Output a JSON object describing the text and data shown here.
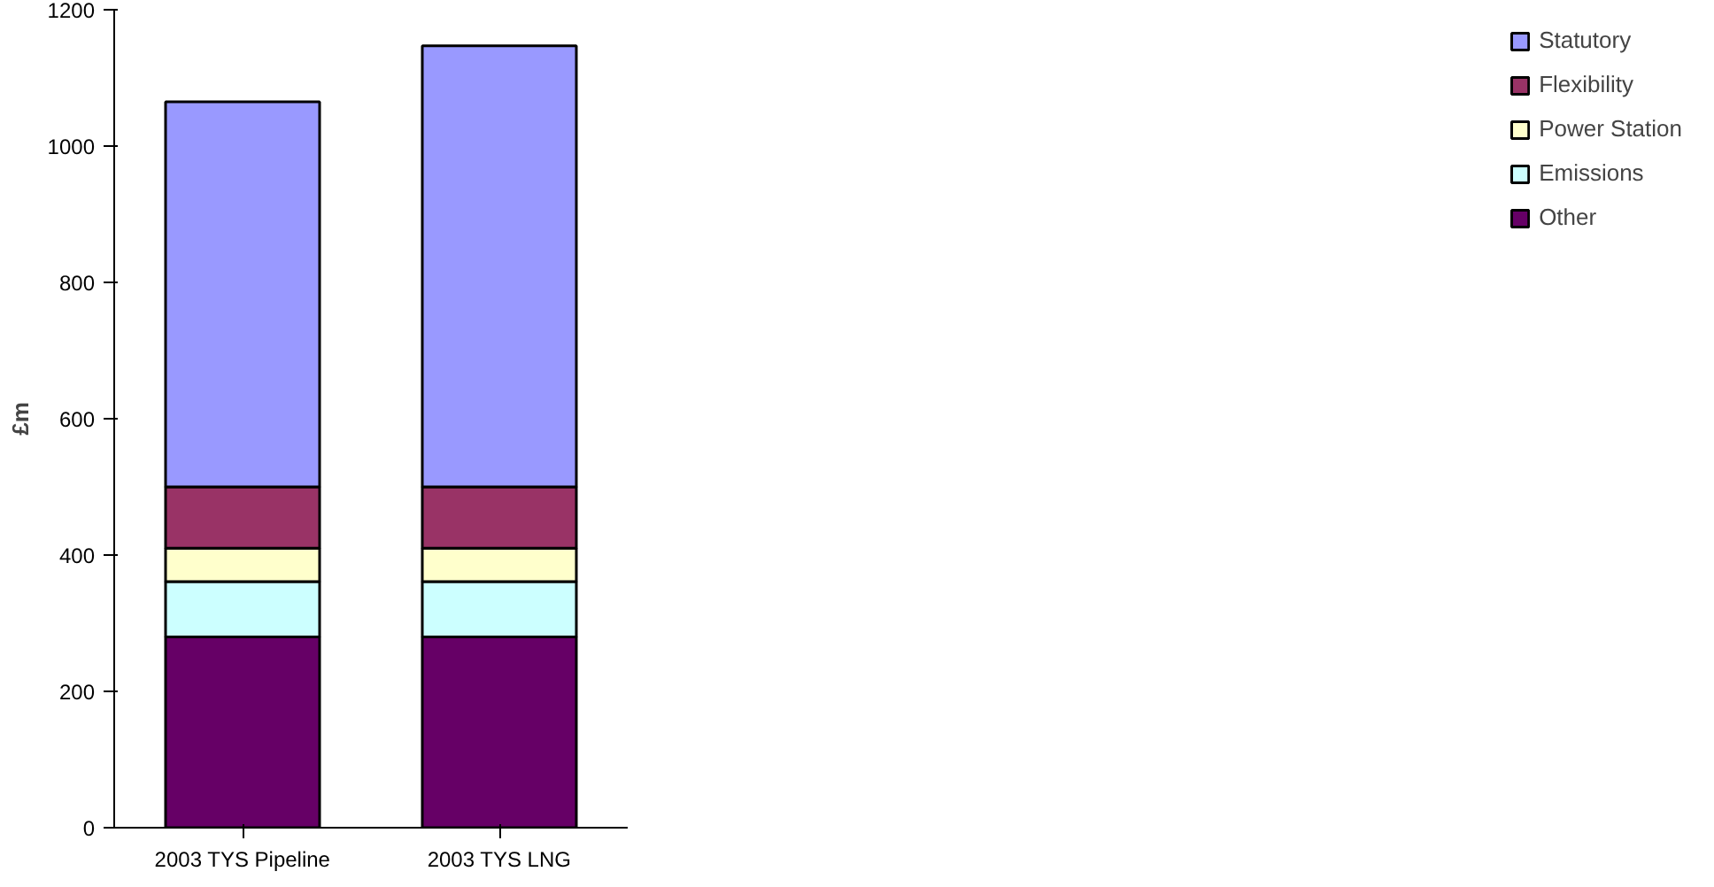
{
  "chart_data": {
    "type": "bar",
    "stacked": true,
    "ylabel": "£m",
    "categories": [
      "2003 TYS Pipeline",
      "2003 TYS LNG"
    ],
    "series": [
      {
        "name": "Other",
        "color": "#660066",
        "values": [
          280,
          280
        ]
      },
      {
        "name": "Emissions",
        "color": "#ccffff",
        "values": [
          81,
          81
        ]
      },
      {
        "name": "Power Station",
        "color": "#ffffcc",
        "values": [
          49,
          49
        ]
      },
      {
        "name": "Flexibility",
        "color": "#993366",
        "values": [
          90,
          90
        ]
      },
      {
        "name": "Statutory",
        "color": "#9999ff",
        "values": [
          565,
          647
        ]
      }
    ],
    "ylim": [
      0,
      1200
    ],
    "yticks": [
      0,
      200,
      400,
      600,
      800,
      1000,
      1200
    ],
    "grid": false,
    "legend": "right"
  }
}
